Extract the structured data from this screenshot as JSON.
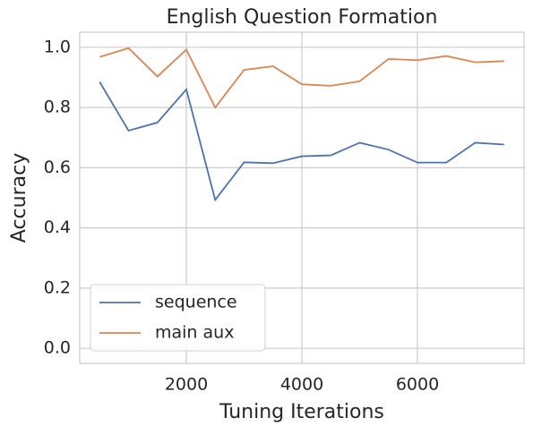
{
  "chart_data": {
    "type": "line",
    "title": "English Question Formation",
    "xlabel": "Tuning Iterations",
    "ylabel": "Accuracy",
    "x": [
      500,
      1000,
      1500,
      2000,
      2500,
      3000,
      3500,
      4000,
      4500,
      5000,
      5500,
      6000,
      6500,
      7000,
      7500
    ],
    "series": [
      {
        "name": "sequence",
        "color": "#4c72b0",
        "values": [
          0.885,
          0.723,
          0.75,
          0.86,
          0.493,
          0.618,
          0.615,
          0.638,
          0.641,
          0.683,
          0.66,
          0.617,
          0.617,
          0.683,
          0.677
        ]
      },
      {
        "name": "main aux",
        "color": "#dd8452",
        "values": [
          0.968,
          0.997,
          0.903,
          0.992,
          0.8,
          0.925,
          0.937,
          0.877,
          0.872,
          0.887,
          0.961,
          0.957,
          0.971,
          0.95,
          0.954
        ]
      }
    ],
    "xlim": [
      155,
      7845
    ],
    "ylim": [
      -0.05,
      1.05
    ],
    "xticks": [
      2000,
      4000,
      6000
    ],
    "yticks": [
      {
        "value": 0,
        "label": "0.0"
      },
      0.2,
      0.4,
      0.6,
      0.8,
      {
        "value": 1,
        "label": "1.0"
      }
    ],
    "grid": true,
    "legend": "lower left"
  }
}
